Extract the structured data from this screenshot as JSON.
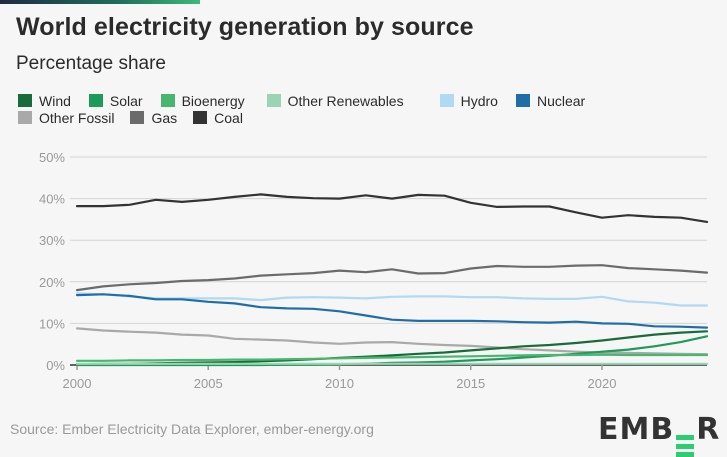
{
  "header": {
    "title": "World electricity generation by source",
    "subtitle": "Percentage share"
  },
  "legend": {
    "rows": [
      [
        {
          "label": "Wind",
          "color": "#186c3b"
        },
        {
          "label": "Solar",
          "color": "#1e9a5a"
        },
        {
          "label": "Bioenergy",
          "color": "#48b66f"
        },
        {
          "label": "Other Renewables",
          "color": "#9ad4b4"
        },
        {
          "label": "Hydro",
          "color": "#b0d9f3"
        },
        {
          "label": "Nuclear",
          "color": "#1f6ea8"
        }
      ],
      [
        {
          "label": "Other Fossil",
          "color": "#a9a9a9"
        },
        {
          "label": "Gas",
          "color": "#6b6b6b"
        },
        {
          "label": "Coal",
          "color": "#333333"
        }
      ]
    ]
  },
  "footer": {
    "source": "Source: Ember Electricity Data Explorer, ember-energy.org",
    "logo_left": "EMB",
    "logo_right": "R",
    "logo_accent": "#2ecc71"
  },
  "chart_data": {
    "type": "line",
    "title": "World electricity generation by source",
    "subtitle": "Percentage share",
    "xlabel": "",
    "ylabel": "",
    "x": [
      2000,
      2001,
      2002,
      2003,
      2004,
      2005,
      2006,
      2007,
      2008,
      2009,
      2010,
      2011,
      2012,
      2013,
      2014,
      2015,
      2016,
      2017,
      2018,
      2019,
      2020,
      2021,
      2022,
      2023,
      2024
    ],
    "xticks": [
      2000,
      2005,
      2010,
      2015,
      2020
    ],
    "xtick_labels": [
      "2000",
      "2005",
      "2010",
      "2015",
      "2020"
    ],
    "ylim": [
      0,
      50
    ],
    "yticks": [
      0,
      10,
      20,
      30,
      40,
      50
    ],
    "ytick_labels": [
      "0%",
      "10%",
      "20%",
      "30%",
      "40%",
      "50%"
    ],
    "grid": true,
    "legend_position": "top-left",
    "series": [
      {
        "name": "Coal",
        "color": "#333333",
        "values": [
          38.2,
          38.2,
          38.5,
          39.7,
          39.2,
          39.7,
          40.4,
          41.0,
          40.4,
          40.1,
          40.0,
          40.8,
          40.0,
          40.9,
          40.7,
          39.0,
          38.0,
          38.1,
          38.1,
          36.7,
          35.4,
          36.0,
          35.6,
          35.4,
          34.4
        ]
      },
      {
        "name": "Gas",
        "color": "#6b6b6b",
        "values": [
          18.0,
          18.9,
          19.4,
          19.7,
          20.2,
          20.4,
          20.8,
          21.5,
          21.8,
          22.1,
          22.7,
          22.3,
          23.0,
          22.0,
          22.1,
          23.2,
          23.8,
          23.6,
          23.6,
          23.9,
          24.0,
          23.3,
          23.0,
          22.7,
          22.2
        ]
      },
      {
        "name": "Hydro",
        "color": "#b0d9f3",
        "values": [
          17.2,
          17.0,
          16.5,
          16.0,
          16.0,
          16.0,
          16.0,
          15.6,
          16.2,
          16.3,
          16.2,
          16.0,
          16.4,
          16.5,
          16.5,
          16.3,
          16.3,
          16.0,
          15.9,
          15.9,
          16.4,
          15.3,
          15.0,
          14.3,
          14.3
        ]
      },
      {
        "name": "Nuclear",
        "color": "#1f6ea8",
        "values": [
          16.8,
          17.0,
          16.6,
          15.8,
          15.8,
          15.2,
          14.8,
          13.9,
          13.6,
          13.5,
          12.9,
          11.9,
          10.9,
          10.6,
          10.6,
          10.6,
          10.5,
          10.3,
          10.2,
          10.4,
          10.0,
          9.9,
          9.3,
          9.2,
          9.0
        ]
      },
      {
        "name": "Other Fossil",
        "color": "#a9a9a9",
        "values": [
          8.8,
          8.3,
          8.0,
          7.8,
          7.3,
          7.1,
          6.3,
          6.1,
          5.9,
          5.4,
          5.1,
          5.4,
          5.5,
          5.1,
          4.8,
          4.6,
          4.2,
          3.8,
          3.5,
          3.2,
          3.0,
          2.9,
          2.8,
          2.7,
          2.6
        ]
      },
      {
        "name": "Wind",
        "color": "#186c3b",
        "values": [
          0.2,
          0.3,
          0.3,
          0.4,
          0.5,
          0.6,
          0.7,
          0.9,
          1.1,
          1.4,
          1.7,
          2.0,
          2.3,
          2.7,
          3.0,
          3.5,
          4.0,
          4.5,
          4.8,
          5.3,
          5.9,
          6.6,
          7.3,
          7.8,
          8.1
        ]
      },
      {
        "name": "Solar",
        "color": "#1e9a5a",
        "values": [
          0.0,
          0.0,
          0.0,
          0.0,
          0.0,
          0.0,
          0.0,
          0.0,
          0.1,
          0.1,
          0.2,
          0.3,
          0.5,
          0.6,
          0.8,
          1.1,
          1.4,
          1.8,
          2.2,
          2.7,
          3.2,
          3.7,
          4.5,
          5.5,
          6.9
        ]
      },
      {
        "name": "Bioenergy",
        "color": "#48b66f",
        "values": [
          1.0,
          1.0,
          1.1,
          1.1,
          1.2,
          1.2,
          1.3,
          1.3,
          1.4,
          1.5,
          1.6,
          1.7,
          1.8,
          1.9,
          2.0,
          2.1,
          2.2,
          2.3,
          2.4,
          2.4,
          2.5,
          2.4,
          2.4,
          2.4,
          2.4
        ]
      },
      {
        "name": "Other Renewables",
        "color": "#9ad4b4",
        "values": [
          0.3,
          0.3,
          0.3,
          0.3,
          0.3,
          0.3,
          0.3,
          0.3,
          0.3,
          0.3,
          0.3,
          0.3,
          0.3,
          0.3,
          0.3,
          0.3,
          0.3,
          0.3,
          0.3,
          0.3,
          0.3,
          0.3,
          0.3,
          0.3,
          0.3
        ]
      }
    ]
  }
}
